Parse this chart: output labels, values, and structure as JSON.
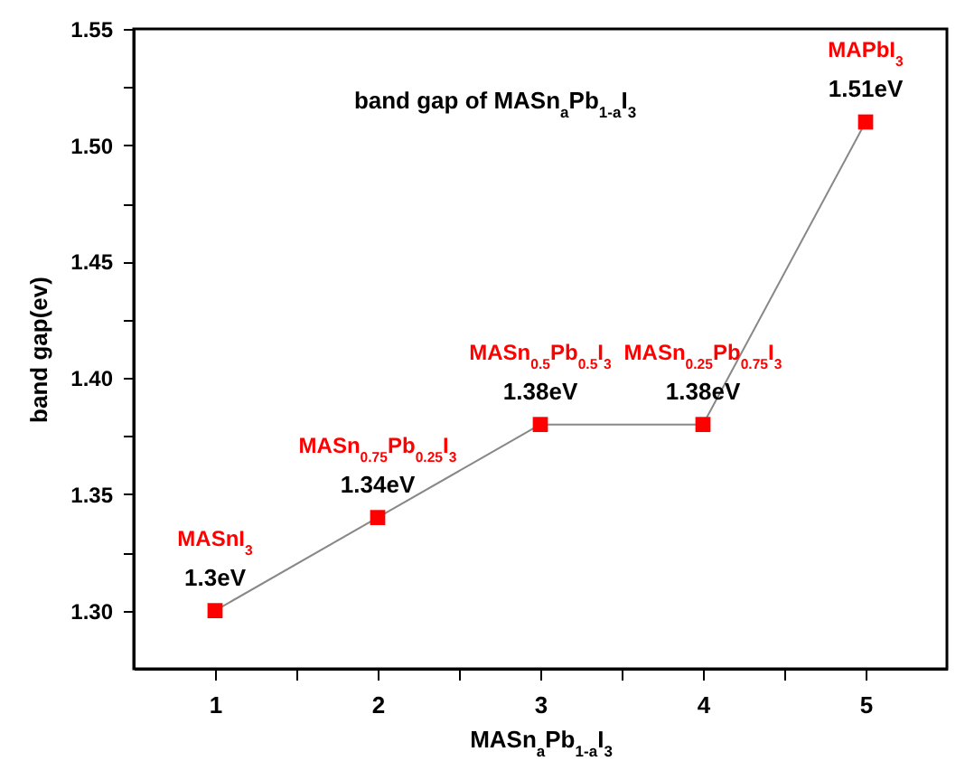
{
  "chart_data": {
    "type": "line",
    "title": "band gap of MASn$_{a}$Pb$_{1-a}$I$_{3}$",
    "xlabel": "MASn$_{a}$Pb$_{1-a}$I$_{3}$",
    "ylabel": "band gap(ev)",
    "x": [
      1,
      2,
      3,
      4,
      5
    ],
    "series": [
      {
        "color": "#ff0000",
        "values": [
          1.3,
          1.34,
          1.38,
          1.38,
          1.51
        ],
        "value_labels": [
          "1.3eV",
          "1.34eV",
          "1.38eV",
          "1.38eV",
          "1.51eV"
        ]
      }
    ],
    "annotations": [
      {
        "text": "MASnI$_{3}$",
        "x": 1,
        "y": 1.3
      },
      {
        "text": "MASn$_{0.75}$Pb$_{0.25}$I$_{3}$",
        "x": 2,
        "y": 1.34
      },
      {
        "text": "MASn$_{0.5}$Pb$_{0.5}$I$_{3}$",
        "x": 3,
        "y": 1.38
      },
      {
        "text": "MASn$_{0.25}$Pb$_{0.75}$I$_{3}$",
        "x": 4,
        "y": 1.38
      },
      {
        "text": "MAPbI$_{3}$",
        "x": 5,
        "y": 1.51
      }
    ],
    "xlim": [
      0.5,
      5.5
    ],
    "xticks": [
      1,
      {
        "value": 1.5,
        "label": null
      },
      2,
      {
        "value": 2.5,
        "label": null
      },
      3,
      {
        "value": 3.5,
        "label": null
      },
      4,
      {
        "value": 4.5,
        "label": null
      },
      5
    ],
    "ylim": [
      1.275,
      1.55
    ],
    "yticks": [
      "1.30",
      {
        "value": 1.325,
        "label": null
      },
      1.35,
      {
        "value": 1.375,
        "label": null
      },
      "1.40",
      {
        "value": 1.425,
        "label": null
      },
      1.45,
      {
        "value": 1.475,
        "label": null
      },
      "1.50",
      {
        "value": 1.525,
        "label": null
      },
      1.55
    ],
    "marker": "square",
    "grid": false
  }
}
